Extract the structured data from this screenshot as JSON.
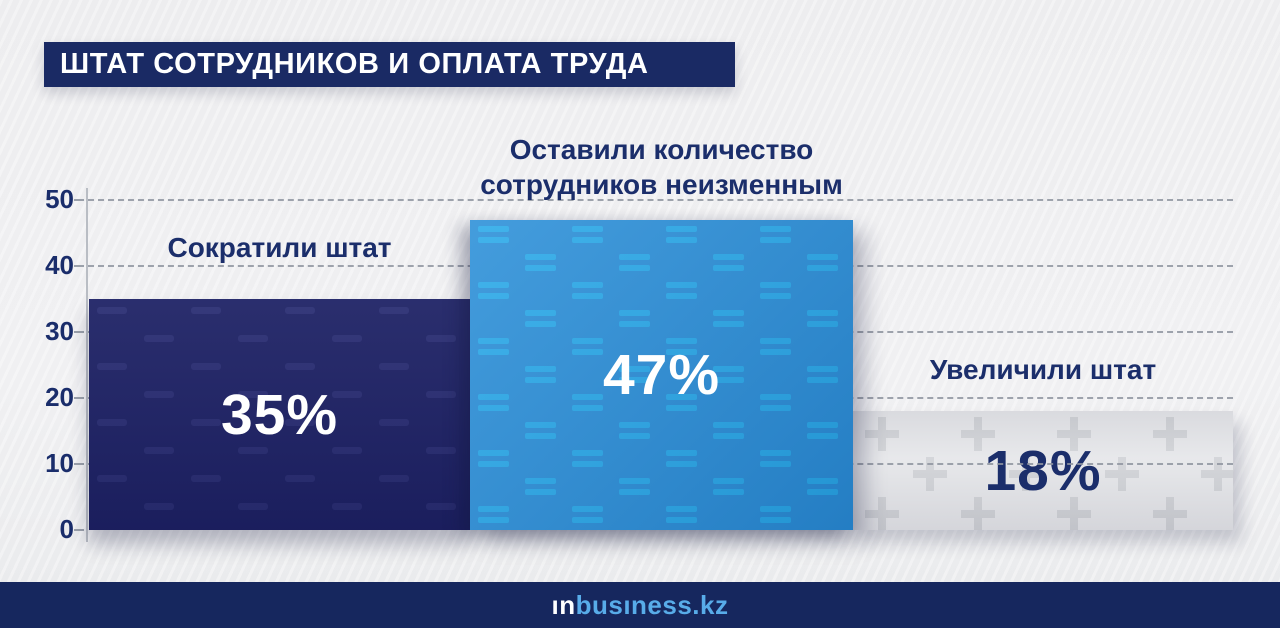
{
  "header": {
    "title": "ШТАТ СОТРУДНИКОВ И ОПЛАТА ТРУДА"
  },
  "chart_data": {
    "type": "bar",
    "title": "ШТАТ СОТРУДНИКОВ И ОПЛАТА ТРУДА",
    "categories": [
      "Сократили штат",
      "Оставили количество\nсотрудников неизменным",
      "Увеличили штат"
    ],
    "values": [
      35,
      47,
      18
    ],
    "value_labels": [
      "35%",
      "47%",
      "18%"
    ],
    "yticks": [
      0,
      10,
      20,
      30,
      40,
      50
    ],
    "ylim": [
      0,
      50
    ],
    "xlabel": "",
    "ylabel": "",
    "grid": "horizontal-dashed",
    "legend": "none",
    "bar_colors": [
      "#1f2366",
      "#2a8fd8",
      "#e5e6e9"
    ],
    "bar_pattern_colors": [
      "#2b2f74",
      "#28a9e9",
      "#d0d2d6"
    ],
    "bar_patterns": [
      "single-dash",
      "double-dash",
      "plus"
    ],
    "value_colors": [
      "#ffffff",
      "#ffffff",
      "#1b2e6b"
    ],
    "gridline_color": "#8f95a0",
    "label_color": "#1b2e6b"
  },
  "footer": {
    "logo_prefix": "ın",
    "logo_suffix": "busıness.kz"
  }
}
